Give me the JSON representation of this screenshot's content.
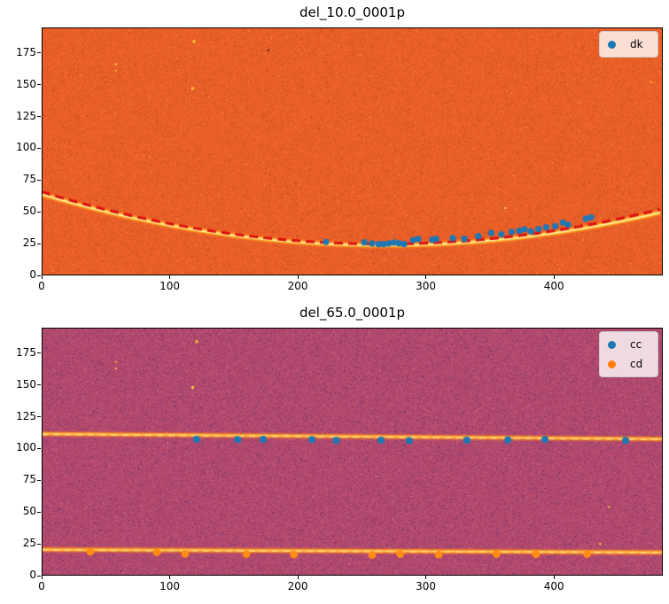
{
  "figure": {
    "background": "#ffffff"
  },
  "chart_data": [
    {
      "type": "heatmap+scatter",
      "title": "del_10.0_0001p",
      "xlabel": "",
      "ylabel": "",
      "xlim": [
        0,
        485
      ],
      "ylim": [
        0,
        195
      ],
      "x_ticks": [
        0,
        100,
        200,
        300,
        400
      ],
      "y_ticks": [
        0,
        25,
        50,
        75,
        100,
        125,
        150,
        175
      ],
      "grid": false,
      "legend_position": "upper right",
      "noise": {
        "seed": 101,
        "base": "#e95f28",
        "dark": "#b03a16",
        "dark_p": 0.015,
        "bright": "#ffd24a",
        "bright_p": 0.0012,
        "amp": 13
      },
      "glow": [
        [
          8,
          "rgba(255,140,25,0.30)"
        ],
        [
          5,
          "rgba(255,175,40,0.75)"
        ],
        [
          2.6,
          "#ffd24a"
        ],
        [
          1.2,
          "#fff3b0"
        ]
      ],
      "curves": [
        {
          "role": "bright-trace",
          "shape": "quad",
          "a": 0.00056,
          "x0": 268,
          "y0": 23.6,
          "style": "glow"
        },
        {
          "role": "fit-line",
          "shape": "quad",
          "a": 0.000581,
          "x0": 266,
          "y0": 24.7,
          "style": "dash",
          "color": "#dd1111",
          "width": 3.2,
          "dash": [
            10,
            6
          ]
        }
      ],
      "series": [
        {
          "name": "dk",
          "color": "#1f77b4",
          "marker_r": 3.6,
          "points": [
            [
              222,
              26.3
            ],
            [
              252,
              26.0
            ],
            [
              258,
              25.2
            ],
            [
              263,
              24.6
            ],
            [
              267,
              24.6
            ],
            [
              271,
              25.2
            ],
            [
              275,
              25.9
            ],
            [
              279,
              25.3
            ],
            [
              283,
              24.7
            ],
            [
              290,
              27.8
            ],
            [
              294,
              28.6
            ],
            [
              305,
              28.1
            ],
            [
              308,
              28.7
            ],
            [
              321,
              29.4
            ],
            [
              330,
              28.9
            ],
            [
              341,
              30.9
            ],
            [
              351,
              33.4
            ],
            [
              359,
              32.3
            ],
            [
              367,
              34.3
            ],
            [
              373,
              35.1
            ],
            [
              377,
              36.4
            ],
            [
              382,
              34.6
            ],
            [
              388,
              36.5
            ],
            [
              394,
              37.8
            ],
            [
              401,
              38.7
            ],
            [
              407,
              41.6
            ],
            [
              411,
              40.0
            ],
            [
              425,
              44.6
            ],
            [
              429,
              45.8
            ]
          ]
        }
      ],
      "legend": {
        "items": [
          {
            "label": "dk",
            "color": "#1f77b4"
          }
        ]
      },
      "artifacts": [
        [
          119,
          184,
          "#ffc832",
          3
        ],
        [
          58,
          166,
          "#ffd24a",
          2
        ],
        [
          58,
          161,
          "#ffb030",
          2
        ],
        [
          118,
          147,
          "#ffc832",
          3
        ],
        [
          177,
          177,
          "#3c1d14",
          2
        ],
        [
          476,
          152,
          "#ffb030",
          2
        ],
        [
          362,
          53,
          "#ffd24a",
          2
        ]
      ]
    },
    {
      "type": "heatmap+scatter",
      "title": "del_65.0_0001p",
      "xlabel": "",
      "ylabel": "",
      "xlim": [
        0,
        485
      ],
      "ylim": [
        0,
        195
      ],
      "x_ticks": [
        0,
        100,
        200,
        300,
        400
      ],
      "y_ticks": [
        0,
        25,
        50,
        75,
        100,
        125,
        150,
        175
      ],
      "grid": false,
      "legend_position": "upper right",
      "noise": {
        "seed": 202,
        "base": "#b1496e",
        "dark": "#4c2b72",
        "dark_p": 0.03,
        "bright": "#d8798f",
        "bright_p": 0.012,
        "amp": 15
      },
      "glow": [
        [
          7,
          "rgba(255,125,20,0.30)"
        ],
        [
          4.4,
          "rgba(255,150,30,0.85)"
        ],
        [
          2.4,
          "#ff9e2a"
        ],
        [
          1.2,
          "#ffc96a"
        ]
      ],
      "curves": [
        {
          "role": "bright-trace",
          "shape": "line",
          "p1": [
            0,
            111.5
          ],
          "p2": [
            485,
            107.5
          ],
          "style": "glow"
        },
        {
          "role": "fit-line",
          "shape": "line",
          "p1": [
            0,
            111.2
          ],
          "p2": [
            485,
            107.2
          ],
          "style": "dash",
          "color": "#ffd27a",
          "width": 2,
          "dash": [
            7,
            6
          ]
        },
        {
          "role": "bright-trace",
          "shape": "line",
          "p1": [
            0,
            20.5
          ],
          "p2": [
            485,
            18.3
          ],
          "style": "glow"
        },
        {
          "role": "fit-line",
          "shape": "line",
          "p1": [
            0,
            20.3
          ],
          "p2": [
            485,
            18.1
          ],
          "style": "dash",
          "color": "#ffd27a",
          "width": 2,
          "dash": [
            7,
            6
          ]
        }
      ],
      "series": [
        {
          "name": "cc",
          "color": "#1f77b4",
          "marker_r": 4.0,
          "points": [
            [
              121,
              107.3
            ],
            [
              153,
              107.0
            ],
            [
              173,
              107.2
            ],
            [
              211,
              107.0
            ],
            [
              230,
              106.4
            ],
            [
              265,
              106.6
            ],
            [
              287,
              106.2
            ],
            [
              332,
              106.6
            ],
            [
              364,
              106.8
            ],
            [
              393,
              107.0
            ],
            [
              456,
              106.4
            ]
          ]
        },
        {
          "name": "cd",
          "color": "#ff8c12",
          "marker_r": 4.4,
          "points": [
            [
              38,
              18.8
            ],
            [
              90,
              18.3
            ],
            [
              112,
              17.2
            ],
            [
              160,
              16.9
            ],
            [
              197,
              16.6
            ],
            [
              258,
              16.2
            ],
            [
              280,
              17.0
            ],
            [
              310,
              16.6
            ],
            [
              355,
              16.9
            ],
            [
              386,
              16.8
            ],
            [
              426,
              17.0
            ]
          ]
        }
      ],
      "legend": {
        "items": [
          {
            "label": "cc",
            "color": "#1f77b4"
          },
          {
            "label": "cd",
            "color": "#ff7f0e"
          }
        ]
      },
      "artifacts": [
        [
          121,
          184,
          "#ffc832",
          3
        ],
        [
          58,
          168,
          "#ffb030",
          2
        ],
        [
          58,
          163,
          "#ffd24a",
          2
        ],
        [
          118,
          148,
          "#ffc832",
          3
        ],
        [
          443,
          54,
          "#ffd24a",
          2
        ],
        [
          436,
          25,
          "#ffd24a",
          2
        ]
      ]
    }
  ]
}
